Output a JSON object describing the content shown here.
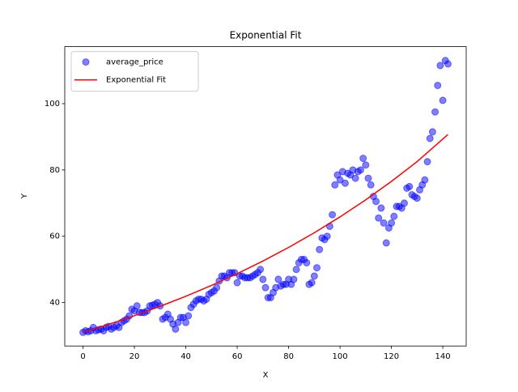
{
  "chart_data": {
    "type": "scatter",
    "title": "Exponential Fit",
    "xlabel": "X",
    "ylabel": "Y",
    "xlim": [
      -7.1,
      149.1
    ],
    "ylim": [
      26.9,
      117.2
    ],
    "xticks": [
      0,
      20,
      40,
      60,
      80,
      100,
      120,
      140
    ],
    "yticks": [
      40,
      60,
      80,
      100
    ],
    "legend": "upper left",
    "series": [
      {
        "name": "average_price",
        "type": "scatter",
        "color": "#0000ff",
        "x": [
          0,
          1,
          2,
          3,
          4,
          5,
          6,
          7,
          8,
          9,
          10,
          11,
          12,
          13,
          14,
          15,
          16,
          17,
          18,
          19,
          20,
          21,
          22,
          23,
          24,
          25,
          26,
          27,
          28,
          29,
          30,
          31,
          32,
          33,
          34,
          35,
          36,
          37,
          38,
          39,
          40,
          41,
          42,
          43,
          44,
          45,
          46,
          47,
          48,
          49,
          50,
          51,
          52,
          53,
          54,
          55,
          56,
          57,
          58,
          59,
          60,
          61,
          62,
          63,
          64,
          65,
          66,
          67,
          68,
          69,
          70,
          71,
          72,
          73,
          74,
          75,
          76,
          77,
          78,
          79,
          80,
          81,
          82,
          83,
          84,
          85,
          86,
          87,
          88,
          89,
          90,
          91,
          92,
          93,
          94,
          95,
          96,
          97,
          98,
          99,
          100,
          101,
          102,
          103,
          104,
          105,
          106,
          107,
          108,
          109,
          110,
          111,
          112,
          113,
          114,
          115,
          116,
          117,
          118,
          119,
          120,
          121,
          122,
          123,
          124,
          125,
          126,
          127,
          128,
          129,
          130,
          131,
          132,
          133,
          134,
          135,
          136,
          137,
          138,
          139,
          140,
          141,
          142
        ],
        "values": [
          31,
          31.5,
          31.2,
          31.5,
          32.5,
          31.5,
          31.8,
          32,
          31.5,
          32.5,
          32.8,
          32,
          32.5,
          33,
          32.5,
          34,
          34.5,
          35,
          36,
          38,
          37.5,
          39,
          37,
          37,
          37,
          37.5,
          39,
          39.2,
          39.5,
          40,
          39,
          35,
          35.5,
          36.5,
          35,
          33.5,
          32,
          34,
          35.5,
          35.5,
          34,
          36,
          38.5,
          39.5,
          40.5,
          41,
          41,
          40.5,
          41,
          42.5,
          43,
          43.5,
          44.5,
          46.5,
          48,
          48,
          47.5,
          49,
          49,
          49,
          46,
          48,
          48,
          47.5,
          47.5,
          47.5,
          48,
          48.5,
          49,
          50,
          47,
          44.5,
          41.5,
          41.5,
          43,
          44.5,
          47,
          45,
          45.5,
          45.5,
          47,
          45.5,
          47,
          50,
          52,
          53,
          53,
          52,
          45.5,
          46,
          48,
          50.5,
          56,
          59.5,
          59,
          60,
          63,
          66.5,
          75.5,
          78.5,
          77,
          79.5,
          76,
          79,
          78.5,
          80,
          77.5,
          79.5,
          80,
          83.5,
          81.5,
          77.5,
          75.5,
          72,
          70.5,
          65.5,
          68.5,
          64,
          58,
          62.5,
          64,
          66,
          69,
          69,
          68.5,
          70,
          74.5,
          75,
          72.5,
          72,
          71.5,
          74,
          75.5,
          77,
          82.5,
          89.5,
          91.5,
          97.5,
          105.5,
          111.5,
          101,
          113,
          112
        ]
      },
      {
        "name": "Exponential Fit",
        "type": "line",
        "color": "#ff0000",
        "x": [
          0,
          10,
          20,
          30,
          40,
          50,
          60,
          70,
          80,
          90,
          100,
          110,
          120,
          130,
          142
        ],
        "values": [
          31,
          33.43,
          36.04,
          38.86,
          41.9,
          45.18,
          48.71,
          52.52,
          56.63,
          61.06,
          65.84,
          70.99,
          76.54,
          82.53,
          90.7
        ]
      }
    ]
  }
}
